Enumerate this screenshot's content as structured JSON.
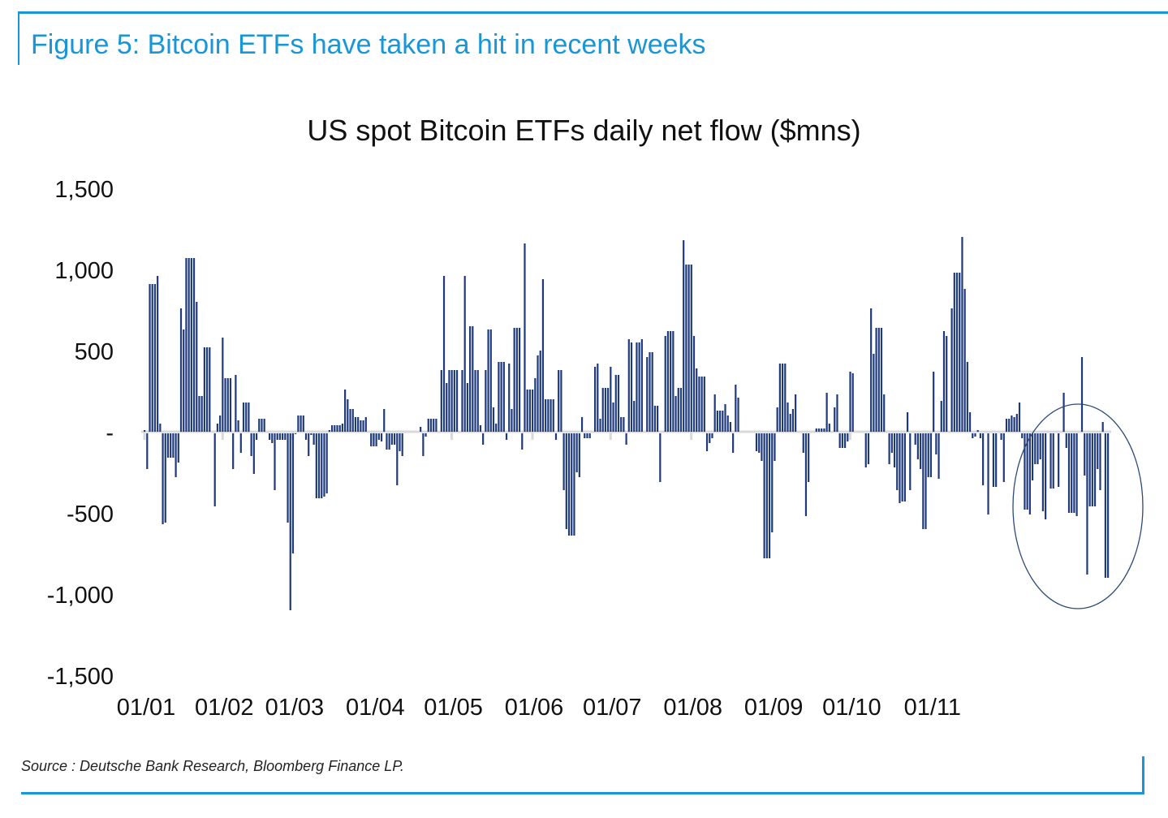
{
  "figure_title": "Figure 5: Bitcoin ETFs have taken a hit in recent weeks",
  "source": "Source : Deutsche Bank Research, Bloomberg Finance LP.",
  "colors": {
    "accent": "#1a96d6",
    "bar": "#1f3a7a",
    "axis": "#d9d9d9",
    "annotation": "#2e4a78"
  },
  "chart_data": {
    "type": "bar",
    "title": "US spot Bitcoin ETFs daily net flow ($mns)",
    "xlabel": "",
    "ylabel": "",
    "ylim": [
      -1500,
      1500
    ],
    "yticks": [
      1500,
      1000,
      500,
      0,
      -500,
      -1000,
      -1500
    ],
    "ytick_labels": [
      "1,500",
      "1,000",
      "500",
      "-",
      "-500",
      "-1,000",
      "-1,500"
    ],
    "xtick_labels": [
      "01/01",
      "01/02",
      "01/03",
      "01/04",
      "01/05",
      "01/06",
      "01/07",
      "01/08",
      "01/09",
      "01/10",
      "01/11"
    ],
    "xtick_positions": [
      0,
      30,
      57,
      88,
      118,
      149,
      179,
      210,
      241,
      271,
      302
    ],
    "grid": false,
    "legend": "none",
    "annotation": "ellipse highlighting recent outflows (early-to-mid November)",
    "values": [
      10,
      -230,
      910,
      910,
      910,
      960,
      50,
      -570,
      -560,
      -160,
      -160,
      -160,
      -280,
      -190,
      760,
      630,
      1070,
      1070,
      1070,
      1070,
      800,
      220,
      220,
      520,
      520,
      520,
      0,
      -460,
      50,
      100,
      580,
      330,
      330,
      330,
      -230,
      350,
      70,
      -130,
      180,
      180,
      180,
      -150,
      -260,
      -50,
      80,
      80,
      80,
      0,
      -50,
      -70,
      -360,
      -50,
      -50,
      -50,
      -50,
      -560,
      -1100,
      -750,
      -10,
      100,
      100,
      100,
      -50,
      -150,
      -20,
      -80,
      -410,
      -410,
      -410,
      -400,
      -380,
      10,
      40,
      40,
      40,
      40,
      50,
      260,
      200,
      140,
      140,
      90,
      90,
      70,
      70,
      90,
      0,
      -90,
      -90,
      -90,
      -50,
      -60,
      140,
      -110,
      -110,
      -80,
      -80,
      -330,
      -120,
      -150,
      0,
      0,
      0,
      0,
      0,
      0,
      30,
      -150,
      -30,
      80,
      80,
      80,
      80,
      0,
      380,
      960,
      300,
      380,
      380,
      380,
      380,
      0,
      380,
      960,
      300,
      650,
      650,
      380,
      380,
      40,
      -80,
      380,
      630,
      630,
      150,
      50,
      430,
      430,
      430,
      -50,
      420,
      140,
      640,
      640,
      640,
      -110,
      1160,
      260,
      260,
      260,
      330,
      470,
      500,
      940,
      200,
      200,
      200,
      200,
      -50,
      380,
      380,
      -360,
      -600,
      -640,
      -640,
      -640,
      -250,
      -280,
      90,
      -40,
      -40,
      -40,
      0,
      400,
      420,
      80,
      270,
      270,
      270,
      400,
      180,
      350,
      350,
      90,
      90,
      -80,
      570,
      550,
      190,
      550,
      550,
      570,
      0,
      460,
      490,
      490,
      160,
      160,
      -310,
      0,
      590,
      620,
      620,
      620,
      220,
      270,
      270,
      1180,
      1030,
      1030,
      1030,
      590,
      390,
      340,
      340,
      340,
      -120,
      -70,
      -40,
      230,
      130,
      130,
      130,
      170,
      100,
      60,
      -130,
      290,
      210,
      0,
      0,
      0,
      0,
      0,
      0,
      -120,
      -130,
      -180,
      -780,
      -780,
      -780,
      -620,
      -180,
      150,
      420,
      420,
      420,
      180,
      110,
      140,
      230,
      0,
      0,
      -130,
      -520,
      -310,
      0,
      0,
      20,
      20,
      20,
      20,
      240,
      50,
      0,
      150,
      230,
      -100,
      -100,
      -100,
      -60,
      370,
      360,
      0,
      0,
      0,
      0,
      -220,
      -200,
      760,
      480,
      640,
      640,
      640,
      230,
      0,
      -200,
      -130,
      -220,
      -360,
      -440,
      -430,
      -430,
      120,
      -360,
      0,
      -80,
      -170,
      -230,
      -600,
      -600,
      -280,
      -280,
      370,
      -140,
      -290,
      190,
      620,
      590,
      0,
      760,
      980,
      980,
      980,
      1200,
      880,
      430,
      120,
      -40,
      -30,
      10,
      -40,
      -330,
      0,
      -510,
      0,
      -340,
      -340,
      0,
      -50,
      -310,
      80,
      80,
      100,
      90,
      110,
      180,
      -40,
      -480,
      -480,
      -510,
      -300,
      -200,
      -200,
      -170,
      -490,
      -540,
      0,
      -350,
      -350,
      0,
      -340,
      0,
      240,
      -100,
      -500,
      -500,
      -500,
      -520,
      0,
      460,
      -270,
      -880,
      -460,
      -460,
      -460,
      -230,
      -360,
      60,
      -900,
      -900
    ]
  }
}
